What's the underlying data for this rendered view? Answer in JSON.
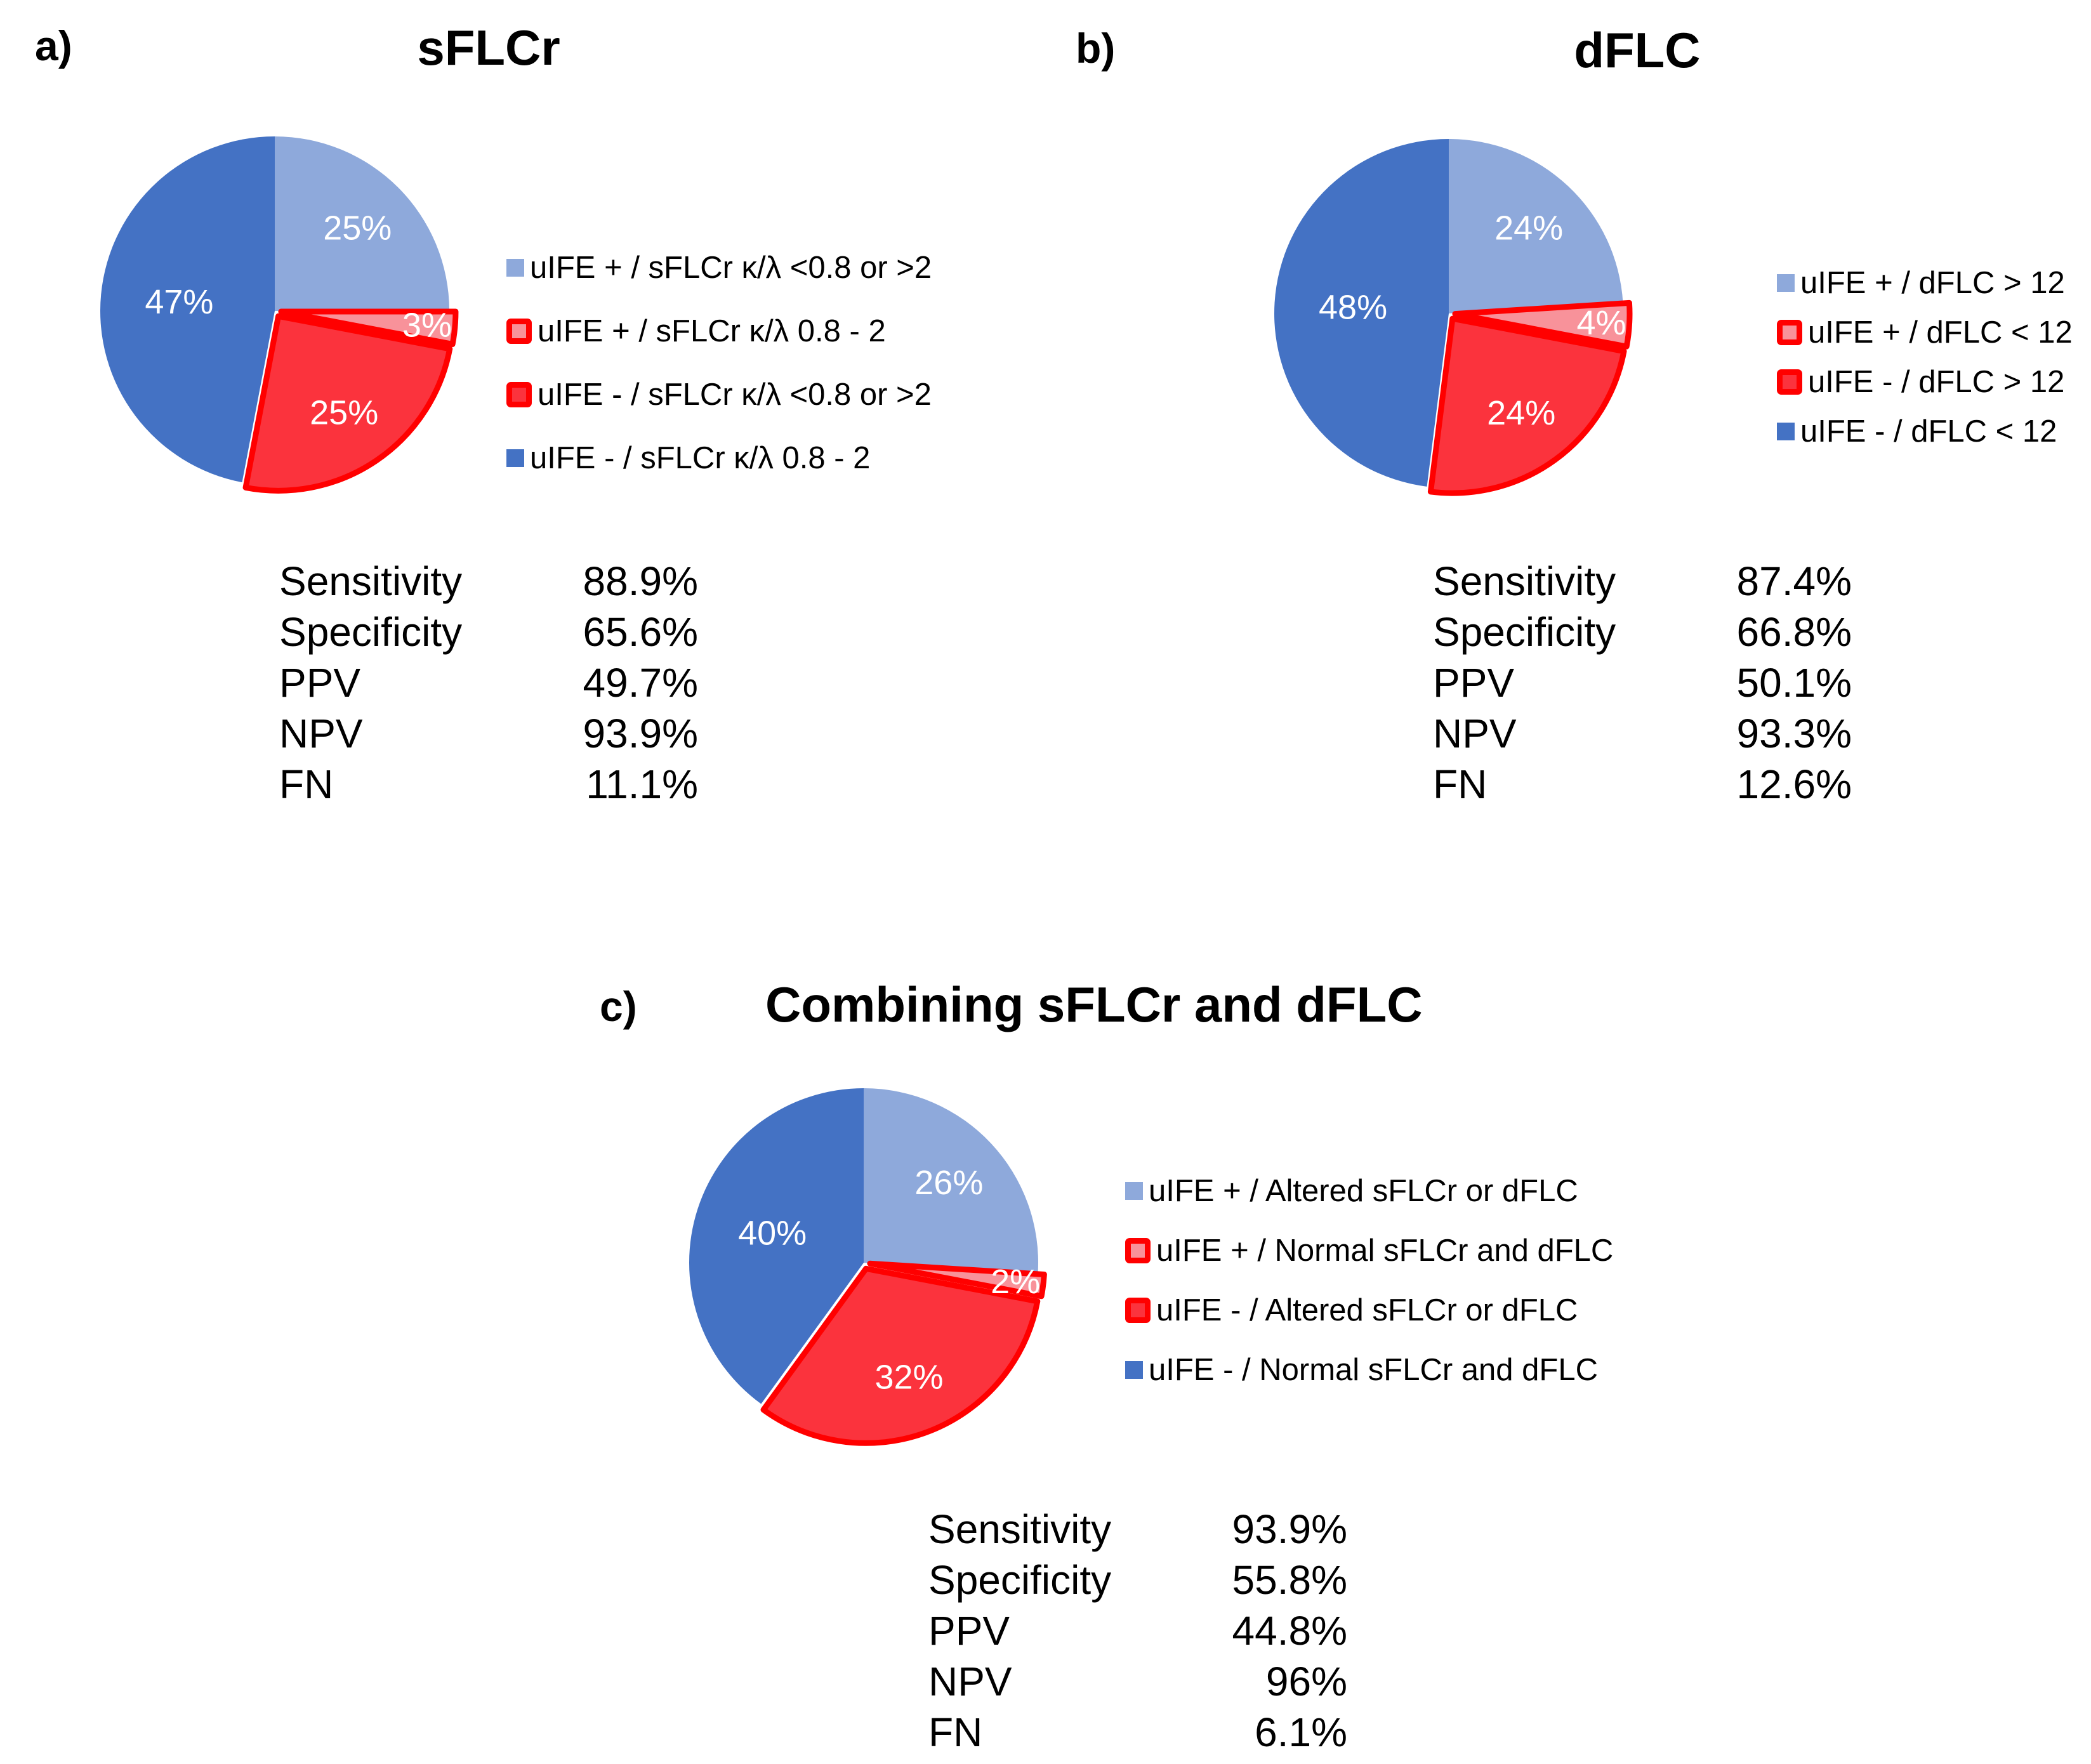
{
  "colors": {
    "light_blue": "#8EA9DB",
    "blue": "#4472C4",
    "red": "#FB333D",
    "pink": "#F8929A",
    "border_red": "#FF0000",
    "slice_label_text": "#FFFFFF",
    "background": "#FFFFFF"
  },
  "chart_data": [
    {
      "type": "pie",
      "panel_label": "a)",
      "title": "sFLCr",
      "start_angle": "12 o'clock, clockwise",
      "legend_position": "right",
      "slices": [
        {
          "label": "uIFE + / sFLCr κ/λ <0.8 or >2",
          "value_pct": 25,
          "color": "#8EA9DB",
          "bordered": false
        },
        {
          "label": "uIFE + / sFLCr κ/λ 0.8 - 2",
          "value_pct": 3,
          "color": "#F8929A",
          "bordered": true
        },
        {
          "label": "uIFE - / sFLCr κ/λ <0.8 or >2",
          "value_pct": 25,
          "color": "#FB333D",
          "bordered": true
        },
        {
          "label": "uIFE - / sFLCr κ/λ 0.8 - 2",
          "value_pct": 47,
          "color": "#4472C4",
          "bordered": false
        }
      ],
      "data_labels": [
        "25%",
        "3%",
        "25%",
        "47%"
      ],
      "stats": [
        {
          "metric": "Sensitivity",
          "value": "88.9%"
        },
        {
          "metric": "Specificity",
          "value": "65.6%"
        },
        {
          "metric": "PPV",
          "value": "49.7%"
        },
        {
          "metric": "NPV",
          "value": "93.9%"
        },
        {
          "metric": "FN",
          "value": "11.1%"
        }
      ]
    },
    {
      "type": "pie",
      "panel_label": "b)",
      "title": "dFLC",
      "start_angle": "12 o'clock, clockwise",
      "legend_position": "right",
      "slices": [
        {
          "label": "uIFE + / dFLC > 12",
          "value_pct": 24,
          "color": "#8EA9DB",
          "bordered": false
        },
        {
          "label": "uIFE + / dFLC < 12",
          "value_pct": 4,
          "color": "#F8929A",
          "bordered": true
        },
        {
          "label": "uIFE - / dFLC > 12",
          "value_pct": 24,
          "color": "#FB333D",
          "bordered": true
        },
        {
          "label": "uIFE - / dFLC < 12",
          "value_pct": 48,
          "color": "#4472C4",
          "bordered": false
        }
      ],
      "data_labels": [
        "24%",
        "4%",
        "24%",
        "48%"
      ],
      "stats": [
        {
          "metric": "Sensitivity",
          "value": "87.4%"
        },
        {
          "metric": "Specificity",
          "value": "66.8%"
        },
        {
          "metric": "PPV",
          "value": "50.1%"
        },
        {
          "metric": "NPV",
          "value": "93.3%"
        },
        {
          "metric": "FN",
          "value": "12.6%"
        }
      ]
    },
    {
      "type": "pie",
      "panel_label": "c)",
      "title": "Combining sFLCr and dFLC",
      "start_angle": "12 o'clock, clockwise",
      "legend_position": "right",
      "slices": [
        {
          "label": "uIFE + / Altered sFLCr or dFLC",
          "value_pct": 26,
          "color": "#8EA9DB",
          "bordered": false
        },
        {
          "label": "uIFE + / Normal sFLCr and dFLC",
          "value_pct": 2,
          "color": "#F8929A",
          "bordered": true
        },
        {
          "label": "uIFE - / Altered sFLCr or dFLC",
          "value_pct": 32,
          "color": "#FB333D",
          "bordered": true
        },
        {
          "label": "uIFE - / Normal sFLCr and dFLC",
          "value_pct": 40,
          "color": "#4472C4",
          "bordered": false
        }
      ],
      "data_labels": [
        "26%",
        "2%",
        "32%",
        "40%"
      ],
      "stats": [
        {
          "metric": "Sensitivity",
          "value": "93.9%"
        },
        {
          "metric": "Specificity",
          "value": "55.8%"
        },
        {
          "metric": "PPV",
          "value": "44.8%"
        },
        {
          "metric": "NPV",
          "value": "96%"
        },
        {
          "metric": "FN",
          "value": "6.1%"
        }
      ]
    }
  ]
}
